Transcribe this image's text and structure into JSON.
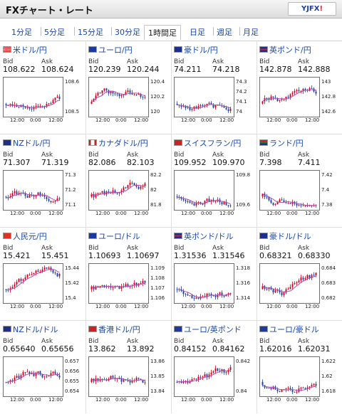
{
  "header": {
    "title": "FXチャート・レート",
    "logo": {
      "main": "YJFX",
      "suffix": "!"
    }
  },
  "tabs": [
    {
      "label": "1分足",
      "active": false
    },
    {
      "label": "5分足",
      "active": false
    },
    {
      "label": "15分足",
      "active": false
    },
    {
      "label": "30分足",
      "active": false
    },
    {
      "label": "1時間足",
      "active": true
    },
    {
      "label": "日足",
      "active": false
    },
    {
      "label": "週足",
      "active": false
    },
    {
      "label": "月足",
      "active": false
    }
  ],
  "labels": {
    "bid": "Bid",
    "ask": "Ask"
  },
  "pairs": [
    {
      "name": "米ドル/円",
      "flag": "us",
      "bid": "108.622",
      "ask": "108.624",
      "chart_data": {
        "type": "candlestick",
        "y_ticks": [
          "108.6",
          "108.5"
        ],
        "x_ticks": [
          "12:00",
          "0:00",
          "12:00"
        ]
      }
    },
    {
      "name": "ユーロ/円",
      "flag": "eu",
      "bid": "120.239",
      "ask": "120.244",
      "chart_data": {
        "type": "candlestick",
        "y_ticks": [
          "120.4",
          "120.2",
          "120"
        ],
        "x_ticks": [
          "12:00",
          "0:00",
          "12:00"
        ]
      }
    },
    {
      "name": "豪ドル/円",
      "flag": "au",
      "bid": "74.211",
      "ask": "74.218",
      "chart_data": {
        "type": "candlestick",
        "y_ticks": [
          "74.3",
          "74.2",
          "74.1",
          "74"
        ],
        "x_ticks": [
          "12:00",
          "0:00",
          "12:00"
        ]
      }
    },
    {
      "name": "英ポンド/円",
      "flag": "uk",
      "bid": "142.878",
      "ask": "142.888",
      "chart_data": {
        "type": "candlestick",
        "y_ticks": [
          "143",
          "142.8",
          "142.6"
        ],
        "x_ticks": [
          "12:00",
          "0:00",
          "12:00"
        ]
      }
    },
    {
      "name": "NZドル/円",
      "flag": "nz",
      "bid": "71.307",
      "ask": "71.319",
      "chart_data": {
        "type": "candlestick",
        "y_ticks": [
          "71.3",
          "71.2",
          "71.1"
        ],
        "x_ticks": [
          "12:00",
          "0:00",
          "12:00"
        ]
      }
    },
    {
      "name": "カナダドル/円",
      "flag": "ca",
      "bid": "82.086",
      "ask": "82.103",
      "chart_data": {
        "type": "candlestick",
        "y_ticks": [
          "82.2",
          "82",
          "81.8"
        ],
        "x_ticks": [
          "12:00",
          "0:00",
          "12:00"
        ]
      }
    },
    {
      "name": "スイスフラン/円",
      "flag": "ch",
      "bid": "109.952",
      "ask": "109.970",
      "chart_data": {
        "type": "candlestick",
        "y_ticks": [
          "109.8",
          "109.6"
        ],
        "x_ticks": [
          "12:00",
          "0:00",
          "12:00"
        ]
      }
    },
    {
      "name": "ランド/円",
      "flag": "za",
      "bid": "7.398",
      "ask": "7.411",
      "chart_data": {
        "type": "candlestick",
        "y_ticks": [
          "7.42",
          "7.4",
          "7.38"
        ],
        "x_ticks": [
          "12:00",
          "0:00",
          "12:00"
        ]
      }
    },
    {
      "name": "人民元/円",
      "flag": "cn",
      "bid": "15.421",
      "ask": "15.451",
      "chart_data": {
        "type": "candlestick",
        "y_ticks": [
          "15.44",
          "15.42",
          "15.4"
        ],
        "x_ticks": [
          "12:00",
          "0:00",
          "12:00"
        ]
      }
    },
    {
      "name": "ユーロ/ドル",
      "flag": "eu",
      "bid": "1.10693",
      "ask": "1.10697",
      "chart_data": {
        "type": "candlestick",
        "y_ticks": [
          "1.109",
          "1.108",
          "1.107",
          "1.106"
        ],
        "x_ticks": [
          "12:00",
          "0:00",
          "12:00"
        ]
      }
    },
    {
      "name": "英ポンド/ドル",
      "flag": "uk",
      "bid": "1.31536",
      "ask": "1.31546",
      "chart_data": {
        "type": "candlestick",
        "y_ticks": [
          "1.318",
          "1.316",
          "1.314"
        ],
        "x_ticks": [
          "12:00",
          "0:00",
          "12:00"
        ]
      }
    },
    {
      "name": "豪ドル/ドル",
      "flag": "au",
      "bid": "0.68321",
      "ask": "0.68330",
      "chart_data": {
        "type": "candlestick",
        "y_ticks": [
          "0.684",
          "0.683",
          "0.682"
        ],
        "x_ticks": [
          "12:00",
          "0:00",
          "12:00"
        ]
      }
    },
    {
      "name": "NZドル/ドル",
      "flag": "nz",
      "bid": "0.65640",
      "ask": "0.65656",
      "chart_data": {
        "type": "candlestick",
        "y_ticks": [
          "0.657",
          "0.656",
          "0.655",
          "0.654"
        ],
        "x_ticks": [
          "12:00",
          "0:00",
          "12:00"
        ]
      }
    },
    {
      "name": "香港ドル/円",
      "flag": "hk",
      "bid": "13.862",
      "ask": "13.892",
      "chart_data": {
        "type": "candlestick",
        "y_ticks": [
          "13.86",
          "13.85",
          "13.84"
        ],
        "x_ticks": [
          "12:00",
          "0:00",
          "12:00"
        ]
      }
    },
    {
      "name": "ユーロ/英ポンド",
      "flag": "eu",
      "bid": "0.84152",
      "ask": "0.84162",
      "chart_data": {
        "type": "candlestick",
        "y_ticks": [
          "0.842",
          "0.84"
        ],
        "x_ticks": [
          "12:00",
          "0:00",
          "12:00"
        ]
      }
    },
    {
      "name": "ユーロ/豪ドル",
      "flag": "eu",
      "bid": "1.62016",
      "ask": "1.62031",
      "chart_data": {
        "type": "candlestick",
        "y_ticks": [
          "1.622",
          "1.62",
          "1.618"
        ],
        "x_ticks": [
          "12:00",
          "0:00",
          "12:00"
        ]
      }
    }
  ],
  "colors": {
    "accent": "#1a48a8",
    "bullish": "#d0021b",
    "bearish": "#1c3fa8",
    "ma_line": "#b44ab4"
  },
  "icons": {
    "flag": "country-flag-icon"
  }
}
